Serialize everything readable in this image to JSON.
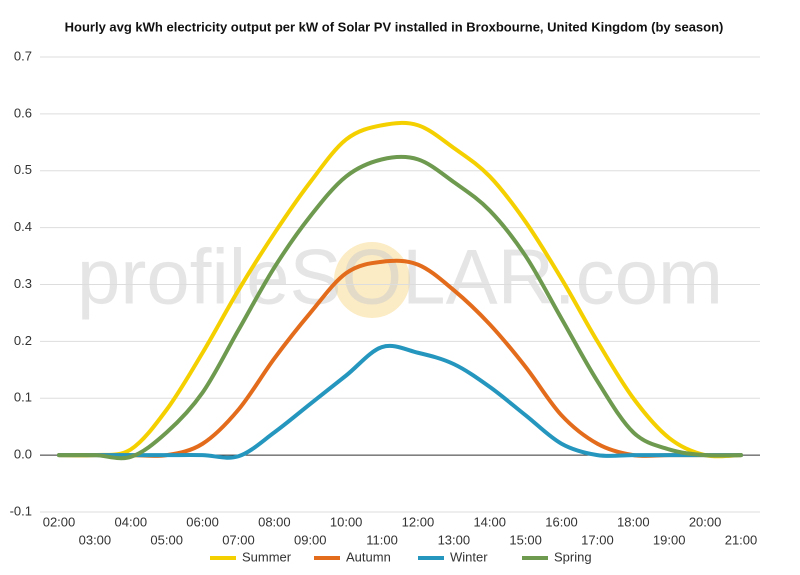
{
  "chart_data": {
    "type": "line",
    "title": "Hourly avg kWh electricity output per kW of Solar PV installed in Broxbourne, United Kingdom (by season)",
    "watermark": "profileSOLAR.com",
    "categories": [
      "02:00",
      "03:00",
      "04:00",
      "05:00",
      "06:00",
      "07:00",
      "08:00",
      "09:00",
      "10:00",
      "11:00",
      "12:00",
      "13:00",
      "14:00",
      "15:00",
      "16:00",
      "17:00",
      "18:00",
      "19:00",
      "20:00",
      "21:00"
    ],
    "series": [
      {
        "name": "Summer",
        "color": "#f5d000",
        "values": [
          0,
          0,
          0.01,
          0.08,
          0.18,
          0.29,
          0.39,
          0.48,
          0.555,
          0.58,
          0.58,
          0.54,
          0.49,
          0.41,
          0.31,
          0.2,
          0.1,
          0.03,
          0,
          0
        ]
      },
      {
        "name": "Autumn",
        "color": "#e36c1c",
        "values": [
          0,
          0,
          0,
          0,
          0.02,
          0.08,
          0.17,
          0.25,
          0.32,
          0.34,
          0.335,
          0.29,
          0.23,
          0.155,
          0.07,
          0.02,
          0,
          0,
          0,
          0
        ]
      },
      {
        "name": "Winter",
        "color": "#2596be",
        "values": [
          0,
          0,
          0,
          0,
          0,
          -0.002,
          0.04,
          0.09,
          0.14,
          0.19,
          0.18,
          0.16,
          0.12,
          0.07,
          0.02,
          0,
          0,
          0,
          0,
          0
        ]
      },
      {
        "name": "Spring",
        "color": "#6e9a4f",
        "values": [
          0,
          0,
          -0.003,
          0.04,
          0.11,
          0.22,
          0.33,
          0.42,
          0.49,
          0.52,
          0.52,
          0.48,
          0.43,
          0.35,
          0.24,
          0.13,
          0.04,
          0.01,
          0,
          0
        ]
      }
    ],
    "ylim": [
      -0.1,
      0.7
    ],
    "yticks": [
      -0.1,
      {
        "value": 0,
        "label": "0.0"
      },
      0.1,
      0.2,
      0.3,
      0.4,
      0.5,
      0.6,
      0.7
    ],
    "grid": true,
    "legend": "bottom"
  }
}
